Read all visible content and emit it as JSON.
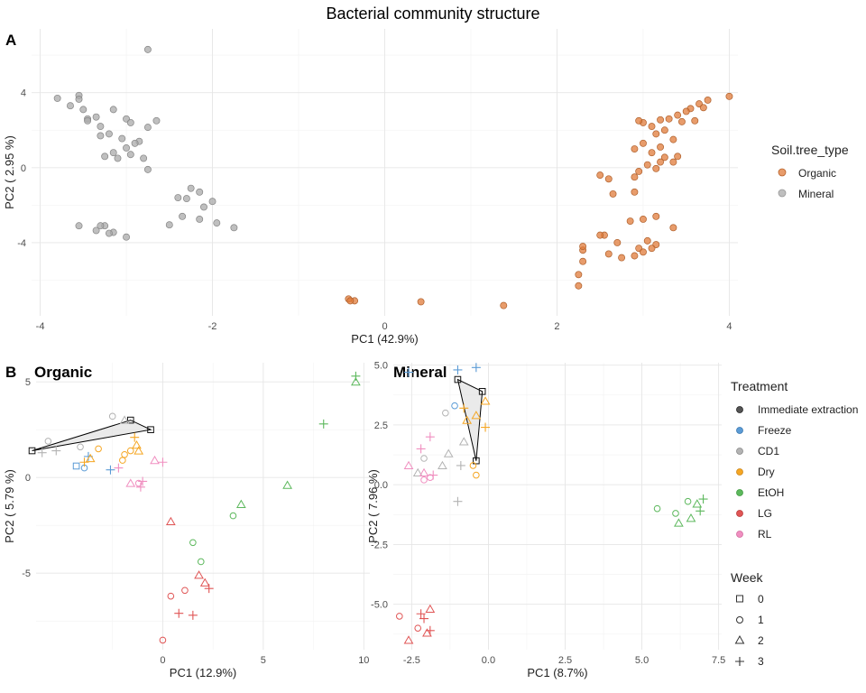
{
  "figure": {
    "title": "Bacterial community structure"
  },
  "chart_data": [
    {
      "type": "scatter",
      "panel_label": "A",
      "xlabel": "PC1 (42.9%)",
      "ylabel": "PC2 ( 2.95 %)",
      "xlim": [
        -4.1,
        4.1
      ],
      "ylim": [
        -7.9,
        7.4
      ],
      "xticks": [
        -4,
        -2,
        0,
        2,
        4
      ],
      "yticks": [
        -4,
        0,
        4
      ],
      "grid": true,
      "legend": {
        "title": "Soil.tree_type",
        "position": "right",
        "entries": [
          {
            "label": "Organic",
            "color": "#E07B39"
          },
          {
            "label": "Mineral",
            "color": "#AAAAAA"
          }
        ]
      },
      "series": [
        {
          "name": "Organic",
          "color": "#E07B39",
          "points": [
            [
              4.0,
              3.8
            ],
            [
              3.75,
              3.6
            ],
            [
              3.65,
              3.4
            ],
            [
              3.55,
              3.15
            ],
            [
              3.7,
              3.2
            ],
            [
              3.5,
              3.0
            ],
            [
              3.4,
              2.8
            ],
            [
              3.3,
              2.6
            ],
            [
              3.6,
              2.5
            ],
            [
              3.45,
              2.45
            ],
            [
              3.2,
              2.55
            ],
            [
              3.1,
              2.2
            ],
            [
              3.0,
              2.4
            ],
            [
              2.95,
              2.5
            ],
            [
              3.25,
              2.0
            ],
            [
              3.15,
              1.8
            ],
            [
              3.35,
              1.5
            ],
            [
              3.0,
              1.3
            ],
            [
              3.2,
              1.1
            ],
            [
              2.9,
              1.0
            ],
            [
              3.1,
              0.8
            ],
            [
              3.4,
              0.6
            ],
            [
              3.25,
              0.55
            ],
            [
              3.35,
              0.3
            ],
            [
              3.2,
              0.3
            ],
            [
              3.05,
              0.15
            ],
            [
              2.95,
              -0.2
            ],
            [
              3.15,
              -0.05
            ],
            [
              2.9,
              -1.3
            ],
            [
              2.5,
              -0.4
            ],
            [
              2.9,
              -0.5
            ],
            [
              2.6,
              -0.6
            ],
            [
              2.65,
              -1.4
            ],
            [
              3.15,
              -2.6
            ],
            [
              3.35,
              -3.2
            ],
            [
              3.0,
              -2.75
            ],
            [
              2.85,
              -2.85
            ],
            [
              2.55,
              -3.6
            ],
            [
              2.7,
              -4.0
            ],
            [
              3.05,
              -3.9
            ],
            [
              2.95,
              -4.3
            ],
            [
              3.15,
              -4.1
            ],
            [
              2.3,
              -4.4
            ],
            [
              2.3,
              -4.2
            ],
            [
              2.6,
              -4.6
            ],
            [
              2.75,
              -4.8
            ],
            [
              3.0,
              -4.5
            ],
            [
              2.3,
              -5.0
            ],
            [
              3.1,
              -4.3
            ],
            [
              2.9,
              -4.7
            ],
            [
              2.25,
              -5.7
            ],
            [
              2.25,
              -6.3
            ],
            [
              -0.42,
              -7.0
            ],
            [
              -0.35,
              -7.1
            ],
            [
              0.42,
              -7.15
            ],
            [
              1.38,
              -7.35
            ],
            [
              -0.4,
              -7.1
            ],
            [
              2.5,
              -3.6
            ]
          ]
        },
        {
          "name": "Mineral",
          "color": "#AAAAAA",
          "points": [
            [
              -2.75,
              6.3
            ],
            [
              -3.55,
              3.85
            ],
            [
              -3.8,
              3.7
            ],
            [
              -3.55,
              3.65
            ],
            [
              -3.65,
              3.3
            ],
            [
              -3.5,
              3.1
            ],
            [
              -3.45,
              2.6
            ],
            [
              -3.15,
              3.1
            ],
            [
              -3.35,
              2.7
            ],
            [
              -3.45,
              2.5
            ],
            [
              -3.3,
              2.2
            ],
            [
              -3.0,
              2.6
            ],
            [
              -2.95,
              2.4
            ],
            [
              -2.65,
              2.5
            ],
            [
              -2.75,
              2.15
            ],
            [
              -3.2,
              1.8
            ],
            [
              -3.3,
              1.7
            ],
            [
              -3.05,
              1.55
            ],
            [
              -2.85,
              1.4
            ],
            [
              -2.9,
              1.3
            ],
            [
              -3.0,
              1.05
            ],
            [
              -3.15,
              0.8
            ],
            [
              -3.25,
              0.6
            ],
            [
              -2.95,
              0.7
            ],
            [
              -3.1,
              0.5
            ],
            [
              -2.8,
              0.5
            ],
            [
              -2.75,
              -0.1
            ],
            [
              -2.25,
              -1.1
            ],
            [
              -2.15,
              -1.3
            ],
            [
              -2.3,
              -1.65
            ],
            [
              -2.4,
              -1.6
            ],
            [
              -2.0,
              -1.8
            ],
            [
              -2.1,
              -2.1
            ],
            [
              -2.35,
              -2.6
            ],
            [
              -2.15,
              -2.75
            ],
            [
              -1.95,
              -2.95
            ],
            [
              -1.75,
              -3.2
            ],
            [
              -2.5,
              -3.05
            ],
            [
              -3.35,
              -3.35
            ],
            [
              -3.25,
              -3.1
            ],
            [
              -3.55,
              -3.1
            ],
            [
              -3.0,
              -3.7
            ],
            [
              -3.15,
              -3.45
            ],
            [
              -3.2,
              -3.5
            ],
            [
              -3.3,
              -3.1
            ]
          ]
        }
      ]
    },
    {
      "type": "scatter",
      "panel_label": "B",
      "subtitle": "Organic",
      "xlabel": "PC1 (12.9%)",
      "ylabel": "PC2 ( 5.79 %)",
      "xlim": [
        -6.3,
        10.3
      ],
      "ylim": [
        -9.0,
        6.0
      ],
      "xticks": [
        0,
        5,
        10
      ],
      "yticks": [
        -5,
        0,
        5
      ],
      "grid": true,
      "hull": [
        [
          -6.5,
          1.4
        ],
        [
          -1.6,
          3.0
        ],
        [
          -0.6,
          2.5
        ],
        [
          -6.5,
          1.4
        ]
      ],
      "series": [
        {
          "name": "Immediate extraction",
          "color": "#555555",
          "points": [
            [
              -6.5,
              1.4,
              0
            ],
            [
              -1.6,
              3.0,
              0
            ],
            [
              -0.6,
              2.5,
              0
            ]
          ]
        },
        {
          "name": "Freeze",
          "color": "#5B9BD5",
          "points": [
            [
              -4.3,
              0.6,
              0
            ],
            [
              -3.7,
              1.1,
              3
            ],
            [
              -2.6,
              0.4,
              3
            ],
            [
              -3.9,
              0.5,
              1
            ]
          ]
        },
        {
          "name": "CD1",
          "color": "#B3B3B3",
          "points": [
            [
              -5.3,
              1.4,
              3
            ],
            [
              -2.5,
              3.2,
              1
            ],
            [
              -1.9,
              3.0,
              2
            ],
            [
              -4.1,
              1.6,
              1
            ],
            [
              -5.7,
              1.9,
              1
            ],
            [
              -6.0,
              1.3,
              3
            ]
          ]
        },
        {
          "name": "Dry",
          "color": "#F5A623",
          "points": [
            [
              -1.4,
              2.1,
              3
            ],
            [
              -1.3,
              1.7,
              2
            ],
            [
              -1.2,
              1.4,
              2
            ],
            [
              -1.9,
              1.2,
              1
            ],
            [
              -3.2,
              1.5,
              1
            ],
            [
              -3.6,
              1.0,
              2
            ],
            [
              -3.9,
              0.8,
              3
            ],
            [
              -2.0,
              0.9,
              1
            ],
            [
              -1.6,
              1.4,
              1
            ]
          ]
        },
        {
          "name": "EtOH",
          "color": "#5CB85C",
          "points": [
            [
              9.6,
              5.0,
              2
            ],
            [
              9.6,
              5.3,
              3
            ],
            [
              8.0,
              2.8,
              3
            ],
            [
              6.2,
              -0.4,
              2
            ],
            [
              3.9,
              -1.4,
              2
            ],
            [
              3.5,
              -2.0,
              1
            ],
            [
              1.5,
              -3.4,
              1
            ],
            [
              1.9,
              -4.4,
              1
            ]
          ]
        },
        {
          "name": "LG",
          "color": "#E05555",
          "points": [
            [
              0.4,
              -2.3,
              2
            ],
            [
              1.8,
              -5.1,
              2
            ],
            [
              2.1,
              -5.5,
              2
            ],
            [
              2.3,
              -5.8,
              3
            ],
            [
              1.1,
              -5.9,
              1
            ],
            [
              0.4,
              -6.2,
              1
            ],
            [
              0.8,
              -7.1,
              3
            ],
            [
              1.5,
              -7.2,
              3
            ],
            [
              0.0,
              -8.5,
              1
            ]
          ]
        },
        {
          "name": "RL",
          "color": "#F08FC0",
          "points": [
            [
              -0.4,
              0.9,
              2
            ],
            [
              0.0,
              0.8,
              3
            ],
            [
              -1.0,
              -0.2,
              3
            ],
            [
              -1.2,
              -0.3,
              1
            ],
            [
              -1.1,
              -0.5,
              3
            ],
            [
              -2.2,
              0.5,
              3
            ],
            [
              -1.6,
              -0.3,
              2
            ]
          ]
        }
      ]
    },
    {
      "type": "scatter",
      "subtitle": "Mineral",
      "xlabel": "PC1 (8.7%)",
      "ylabel": "PC2 ( 7.96 %)",
      "xlim": [
        -3.1,
        7.6
      ],
      "ylim": [
        -6.9,
        5.1
      ],
      "xticks": [
        -2.5,
        0.0,
        2.5,
        5.0,
        7.5
      ],
      "yticks": [
        -5.0,
        -2.5,
        0.0,
        2.5,
        5.0
      ],
      "grid": true,
      "hull": [
        [
          -1.0,
          4.4
        ],
        [
          -0.2,
          3.9
        ],
        [
          -0.4,
          1.0
        ],
        [
          -1.0,
          4.4
        ]
      ],
      "legend": {
        "position": "right",
        "treatment_title": "Treatment",
        "week_title": "Week",
        "weeks": [
          "0",
          "1",
          "2",
          "3"
        ]
      },
      "series": [
        {
          "name": "Immediate extraction",
          "color": "#555555",
          "points": [
            [
              -1.0,
              4.4,
              0
            ],
            [
              -0.2,
              3.9,
              0
            ],
            [
              -0.4,
              1.0,
              0
            ]
          ]
        },
        {
          "name": "Freeze",
          "color": "#5B9BD5",
          "points": [
            [
              -2.6,
              4.7,
              3
            ],
            [
              -1.0,
              4.8,
              3
            ],
            [
              -0.4,
              4.9,
              3
            ],
            [
              -1.1,
              3.3,
              1
            ]
          ]
        },
        {
          "name": "CD1",
          "color": "#B3B3B3",
          "points": [
            [
              -1.4,
              3.0,
              1
            ],
            [
              -0.8,
              1.8,
              2
            ],
            [
              -1.3,
              1.3,
              2
            ],
            [
              -2.1,
              1.1,
              1
            ],
            [
              -0.9,
              0.8,
              3
            ],
            [
              -1.5,
              0.8,
              2
            ],
            [
              -2.3,
              0.5,
              2
            ],
            [
              -1.0,
              -0.7,
              3
            ]
          ]
        },
        {
          "name": "Dry",
          "color": "#F5A623",
          "points": [
            [
              -0.8,
              3.2,
              3
            ],
            [
              -0.4,
              2.9,
              2
            ],
            [
              -0.1,
              3.5,
              2
            ],
            [
              -0.1,
              2.4,
              3
            ],
            [
              -0.5,
              0.8,
              1
            ],
            [
              -0.4,
              0.4,
              1
            ],
            [
              -0.7,
              2.7,
              2
            ]
          ]
        },
        {
          "name": "EtOH",
          "color": "#5CB85C",
          "points": [
            [
              5.5,
              -1.0,
              1
            ],
            [
              6.1,
              -1.2,
              1
            ],
            [
              6.5,
              -0.7,
              1
            ],
            [
              6.8,
              -0.8,
              2
            ],
            [
              7.0,
              -0.6,
              3
            ],
            [
              6.2,
              -1.6,
              2
            ],
            [
              6.6,
              -1.4,
              2
            ],
            [
              6.9,
              -1.1,
              3
            ]
          ]
        },
        {
          "name": "LG",
          "color": "#E05555",
          "points": [
            [
              -2.9,
              -5.5,
              1
            ],
            [
              -2.6,
              -6.5,
              2
            ],
            [
              -2.3,
              -6.0,
              1
            ],
            [
              -2.1,
              -5.6,
              3
            ],
            [
              -1.9,
              -5.2,
              2
            ],
            [
              -2.2,
              -5.4,
              3
            ],
            [
              -2.0,
              -6.2,
              2
            ],
            [
              -1.9,
              -6.1,
              3
            ]
          ]
        },
        {
          "name": "RL",
          "color": "#F08FC0",
          "points": [
            [
              -2.6,
              0.8,
              2
            ],
            [
              -2.1,
              0.5,
              2
            ],
            [
              -1.9,
              2.0,
              3
            ],
            [
              -2.2,
              1.5,
              3
            ],
            [
              -1.9,
              0.3,
              1
            ],
            [
              -1.8,
              0.4,
              3
            ],
            [
              -2.1,
              0.2,
              1
            ]
          ]
        }
      ]
    }
  ]
}
